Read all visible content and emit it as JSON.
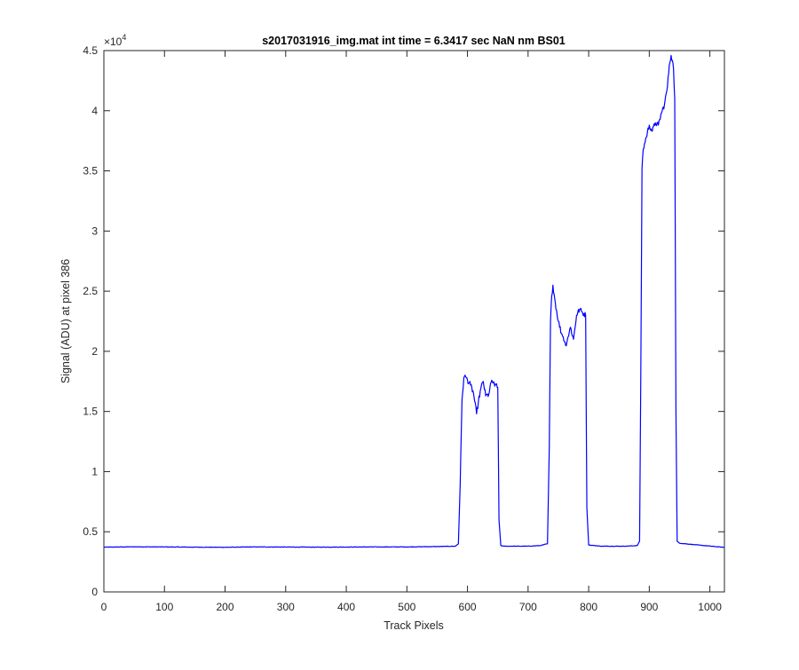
{
  "chart_data": {
    "type": "line",
    "title": "s2017031916_img.mat int time = 6.3417 sec  NaN nm BS01",
    "xlabel": "Track Pixels",
    "ylabel": "Signal (ADU) at pixel 386",
    "y_exponent_label": "×10",
    "y_exponent_power": "4",
    "xlim": [
      0,
      1024
    ],
    "ylim": [
      0,
      4.5
    ],
    "xticks": [
      0,
      100,
      200,
      300,
      400,
      500,
      600,
      700,
      800,
      900,
      1000
    ],
    "xtick_labels": [
      "0",
      "100",
      "200",
      "300",
      "400",
      "500",
      "600",
      "700",
      "800",
      "900",
      "1000"
    ],
    "yticks": [
      0,
      0.5,
      1,
      1.5,
      2,
      2.5,
      3,
      3.5,
      4,
      4.5
    ],
    "ytick_labels": [
      "0",
      "0.5",
      "1",
      "1.5",
      "2",
      "2.5",
      "3",
      "3.5",
      "4",
      "4.5"
    ],
    "grid": false,
    "line_color": "#0000ff",
    "series": [
      {
        "x": [
          0,
          50,
          100,
          150,
          200,
          250,
          300,
          350,
          400,
          450,
          500,
          550,
          580,
          585,
          588,
          591,
          594,
          597,
          600,
          605,
          610,
          615,
          618,
          622,
          626,
          630,
          635,
          640,
          645,
          648,
          650,
          652,
          655,
          660,
          680,
          700,
          720,
          732,
          735,
          737,
          739,
          741,
          745,
          750,
          755,
          758,
          762,
          766,
          770,
          775,
          780,
          785,
          790,
          795,
          797,
          800,
          820,
          860,
          880,
          884,
          886,
          888,
          890,
          895,
          900,
          905,
          910,
          915,
          920,
          925,
          930,
          933,
          936,
          938,
          940,
          942,
          944,
          946,
          950,
          980,
          1024
        ],
        "y": [
          0.372,
          0.375,
          0.374,
          0.372,
          0.371,
          0.374,
          0.373,
          0.372,
          0.373,
          0.374,
          0.374,
          0.377,
          0.38,
          0.4,
          0.9,
          1.6,
          1.78,
          1.79,
          1.76,
          1.72,
          1.65,
          1.48,
          1.58,
          1.69,
          1.75,
          1.63,
          1.64,
          1.76,
          1.71,
          1.73,
          1.7,
          0.6,
          0.385,
          0.38,
          0.38,
          0.38,
          0.385,
          0.4,
          1.2,
          2.25,
          2.46,
          2.55,
          2.4,
          2.25,
          2.15,
          2.12,
          2.05,
          2.12,
          2.2,
          2.1,
          2.3,
          2.35,
          2.32,
          2.3,
          0.7,
          0.39,
          0.38,
          0.38,
          0.385,
          0.42,
          1.8,
          3.52,
          3.68,
          3.78,
          3.88,
          3.83,
          3.9,
          3.88,
          3.98,
          4.05,
          4.2,
          4.38,
          4.46,
          4.42,
          4.35,
          4.1,
          1.5,
          0.42,
          0.405,
          0.39,
          0.37
        ]
      }
    ]
  }
}
